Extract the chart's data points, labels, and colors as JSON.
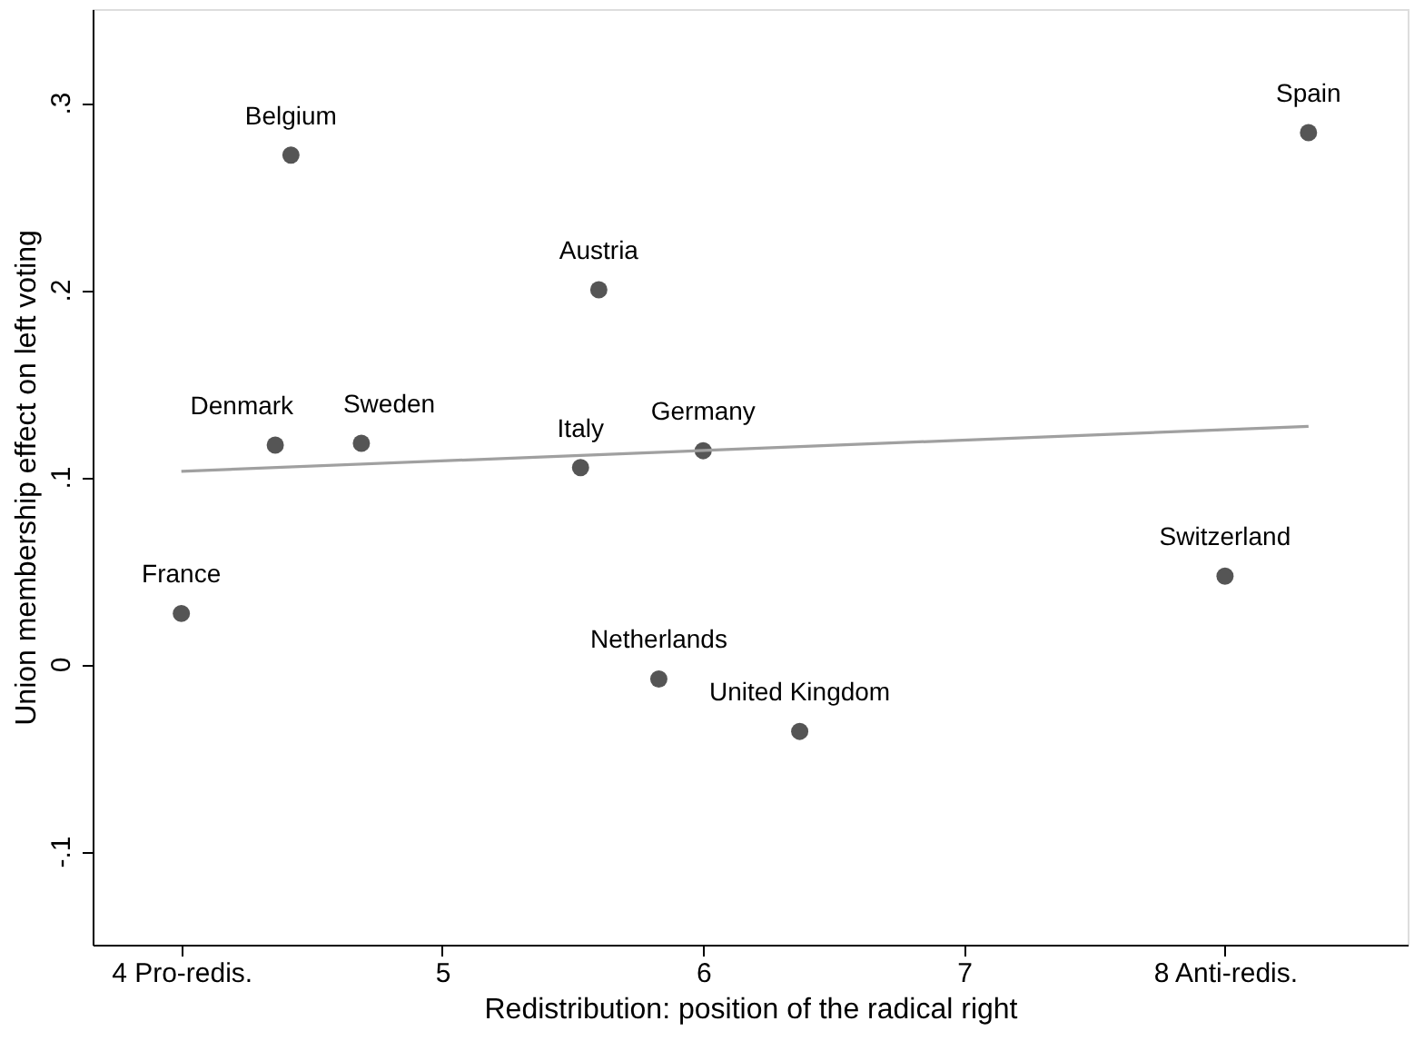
{
  "chart_data": {
    "type": "scatter",
    "xlabel": "Redistribution: position of the radical right",
    "ylabel": "Union membership effect on left voting",
    "x": [
      4.0,
      4.36,
      4.42,
      4.69,
      5.53,
      5.6,
      5.83,
      6.0,
      6.37,
      8.0,
      8.32
    ],
    "series": [
      {
        "type": "scatter",
        "color": "#555555",
        "marker": "circle",
        "values": [
          0.027,
          0.117,
          0.272,
          0.118,
          0.105,
          0.2,
          -0.008,
          0.114,
          -0.036,
          0.047,
          0.284
        ]
      },
      {
        "type": "line",
        "color": "#a0a0a0",
        "x": [
          4.0,
          8.32
        ],
        "values": [
          0.103,
          0.127
        ]
      }
    ],
    "annotations": [
      {
        "text": "France",
        "x": 4.0,
        "y": 0.027
      },
      {
        "text": "Denmark",
        "x": 4.36,
        "y": 0.117
      },
      {
        "text": "Belgium",
        "x": 4.42,
        "y": 0.272
      },
      {
        "text": "Sweden",
        "x": 4.69,
        "y": 0.118
      },
      {
        "text": "Italy",
        "x": 5.53,
        "y": 0.105
      },
      {
        "text": "Austria",
        "x": 5.6,
        "y": 0.2
      },
      {
        "text": "Netherlands",
        "x": 5.83,
        "y": -0.008
      },
      {
        "text": "Germany",
        "x": 6.0,
        "y": 0.114
      },
      {
        "text": "United Kingdom",
        "x": 6.37,
        "y": -0.036
      },
      {
        "text": "Switzerland",
        "x": 8.0,
        "y": 0.047
      },
      {
        "text": "Spain",
        "x": 8.32,
        "y": 0.284
      }
    ],
    "xlim": [
      3.66,
      8.7
    ],
    "ylim": [
      -0.15,
      0.35
    ],
    "xticks": [
      {
        "value": 4,
        "label": "4 Pro-redis."
      },
      5,
      6,
      7,
      {
        "value": 8,
        "label": "8 Anti-redis."
      }
    ],
    "yticks": [
      {
        "value": -0.1,
        "label": "-.1"
      },
      0,
      {
        "value": 0.1,
        "label": ".1"
      },
      {
        "value": 0.2,
        "label": ".2"
      },
      {
        "value": 0.3,
        "label": ".3"
      }
    ],
    "grid": false
  }
}
